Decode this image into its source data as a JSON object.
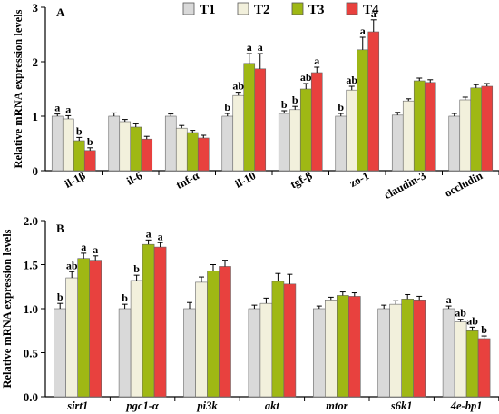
{
  "legend": [
    {
      "name": "T1",
      "color": "#d9d9d9"
    },
    {
      "name": "T2",
      "color": "#f2f0dc"
    },
    {
      "name": "T3",
      "color": "#9fb814"
    },
    {
      "name": "T4",
      "color": "#e8413e"
    }
  ],
  "chart_data": [
    {
      "panel_label": "A",
      "type": "bar",
      "ylabel": "Relative mRNA expression levels",
      "ylim": [
        0,
        3
      ],
      "yticks": [
        "0",
        "1",
        "2",
        "3"
      ],
      "italic_categories": false,
      "categories": [
        "il-1β",
        "il-6",
        "tnf-α",
        "il-10",
        "tgf-β",
        "zo-1",
        "claudin-3",
        "occludin"
      ],
      "series": [
        {
          "name": "T1",
          "values": [
            1.0,
            1.0,
            1.0,
            1.0,
            1.05,
            1.0,
            1.02,
            1.0
          ],
          "errors": [
            0.04,
            0.06,
            0.04,
            0.05,
            0.05,
            0.05,
            0.05,
            0.05
          ],
          "labels": [
            "a",
            "",
            "",
            "b",
            "b",
            "b",
            "",
            ""
          ]
        },
        {
          "name": "T2",
          "values": [
            0.95,
            0.9,
            0.78,
            1.38,
            1.12,
            1.48,
            1.28,
            1.3
          ],
          "errors": [
            0.06,
            0.04,
            0.05,
            0.06,
            0.06,
            0.07,
            0.04,
            0.05
          ],
          "labels": [
            "a",
            "",
            "",
            "ab",
            "b",
            "ab",
            "",
            ""
          ]
        },
        {
          "name": "T3",
          "values": [
            0.55,
            0.8,
            0.7,
            1.97,
            1.5,
            2.22,
            1.65,
            1.52
          ],
          "errors": [
            0.06,
            0.06,
            0.04,
            0.18,
            0.1,
            0.23,
            0.05,
            0.06
          ],
          "labels": [
            "b",
            "",
            "",
            "a",
            "ab",
            "a",
            "",
            ""
          ]
        },
        {
          "name": "T4",
          "values": [
            0.37,
            0.58,
            0.6,
            1.87,
            1.8,
            2.55,
            1.62,
            1.55
          ],
          "errors": [
            0.05,
            0.05,
            0.05,
            0.28,
            0.1,
            0.22,
            0.05,
            0.05
          ],
          "labels": [
            "b",
            "",
            "",
            "a",
            "a",
            "a",
            "",
            ""
          ]
        }
      ]
    },
    {
      "panel_label": "B",
      "type": "bar",
      "ylabel": "Relative mRNA expression levels",
      "ylim": [
        0,
        2.0
      ],
      "yticks": [
        "0.0",
        "0.5",
        "1.0",
        "1.5",
        "2.0"
      ],
      "italic_categories": true,
      "categories": [
        "sirt1",
        "pgc1-α",
        "pi3k",
        "akt",
        "mtor",
        "s6k1",
        "4e-bp1"
      ],
      "series": [
        {
          "name": "T1",
          "values": [
            1.0,
            1.0,
            1.0,
            1.0,
            1.0,
            1.0,
            1.0
          ],
          "errors": [
            0.06,
            0.05,
            0.07,
            0.04,
            0.03,
            0.04,
            0.03
          ],
          "labels": [
            "b",
            "b",
            "",
            "",
            "",
            "",
            "a"
          ]
        },
        {
          "name": "T2",
          "values": [
            1.35,
            1.32,
            1.3,
            1.06,
            1.1,
            1.05,
            0.85
          ],
          "errors": [
            0.07,
            0.06,
            0.06,
            0.06,
            0.03,
            0.04,
            0.03
          ],
          "labels": [
            "ab",
            "b",
            "",
            "",
            "",
            "",
            "ab"
          ]
        },
        {
          "name": "T3",
          "values": [
            1.57,
            1.73,
            1.43,
            1.31,
            1.15,
            1.11,
            0.75
          ],
          "errors": [
            0.06,
            0.05,
            0.07,
            0.09,
            0.04,
            0.05,
            0.04
          ],
          "labels": [
            "a",
            "a",
            "",
            "",
            "",
            "",
            "ab"
          ]
        },
        {
          "name": "T4",
          "values": [
            1.55,
            1.7,
            1.48,
            1.28,
            1.14,
            1.1,
            0.66
          ],
          "errors": [
            0.05,
            0.05,
            0.07,
            0.11,
            0.04,
            0.04,
            0.03
          ],
          "labels": [
            "a",
            "a",
            "",
            "",
            "",
            "",
            "b"
          ]
        }
      ]
    }
  ]
}
